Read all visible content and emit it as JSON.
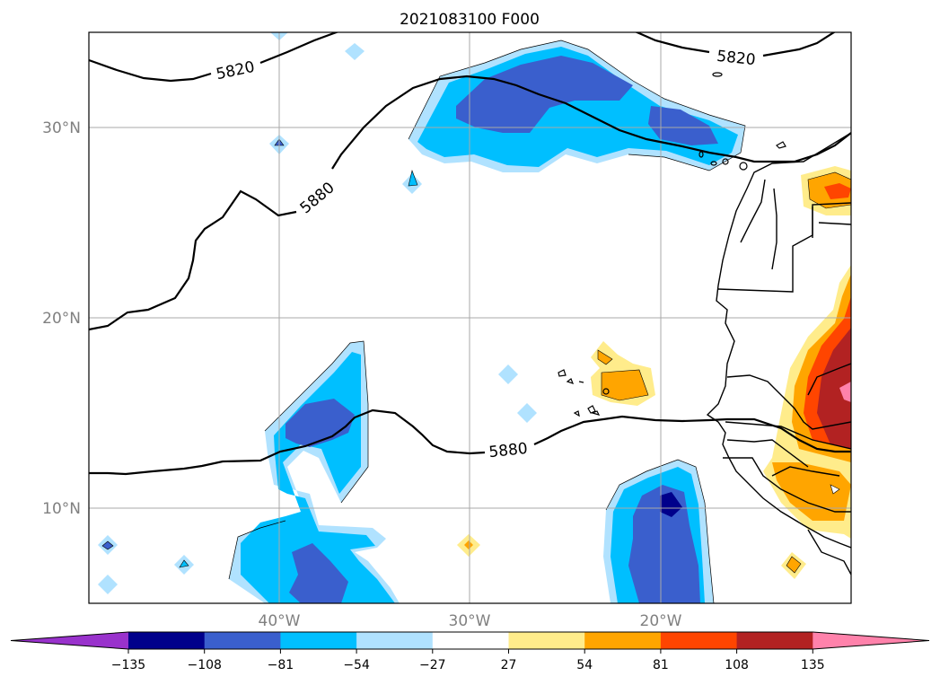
{
  "title": "2021083100 F000",
  "lat_labels": [
    "30°N",
    "20°N",
    "10°N"
  ],
  "lon_labels": [
    "40°W",
    "30°W",
    "20°W"
  ],
  "contour_labels": [
    "5820",
    "5820",
    "5880",
    "5880"
  ],
  "colorbar": {
    "ticks": [
      "−135",
      "−108",
      "−81",
      "−54",
      "−27",
      "27",
      "54",
      "81",
      "108",
      "135"
    ],
    "colors": [
      "#9932cc",
      "#00008b",
      "#3a5fcd",
      "#00bfff",
      "#b0e2ff",
      "#ffffff",
      "#ffec8b",
      "#ffa500",
      "#ff4500",
      "#b22222",
      "#ff82ab"
    ]
  }
}
